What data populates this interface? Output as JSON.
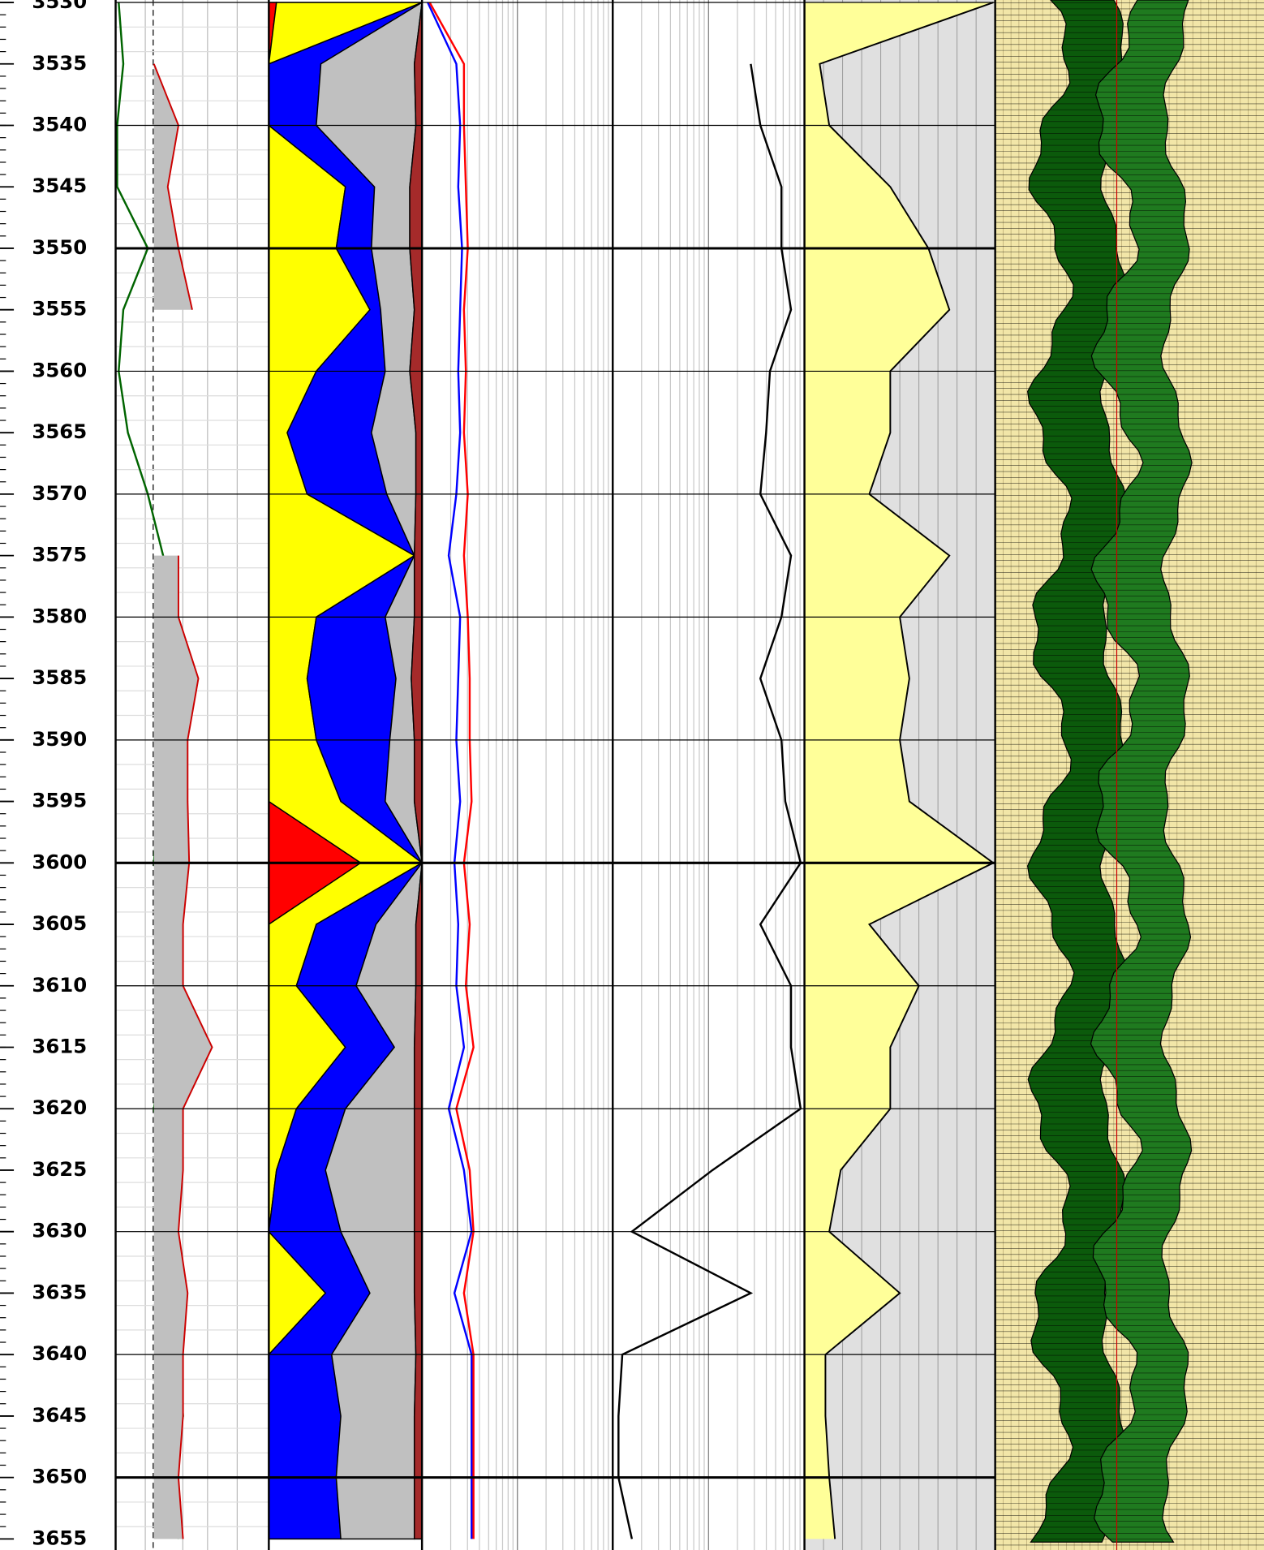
{
  "chart_data": {
    "type": "well-log",
    "depths": [
      3530,
      3535,
      3540,
      3545,
      3550,
      3555,
      3560,
      3565,
      3570,
      3575,
      3580,
      3585,
      3590,
      3595,
      3600,
      3605,
      3610,
      3615,
      3620,
      3625,
      3630,
      3635,
      3640,
      3645,
      3650,
      3655
    ],
    "ylim": [
      3529.8,
      3655.9
    ],
    "yticks": [
      3530,
      3535,
      3540,
      3545,
      3550,
      3555,
      3560,
      3565,
      3570,
      3575,
      3580,
      3585,
      3590,
      3595,
      3600,
      3605,
      3610,
      3615,
      3620,
      3625,
      3630,
      3635,
      3640,
      3645,
      3650,
      3655
    ],
    "tracks": [
      {
        "type": "line",
        "xlim": [
          0,
          100
        ],
        "background": "#ffffff",
        "series": [
          {
            "color": "#006400",
            "values": [
              2,
              5,
              1,
              1,
              21,
              5,
              2,
              8,
              21,
              31,
              37,
              28,
              34,
              28,
              25,
              37,
              34,
              31,
              25,
              34,
              37,
              28,
              41,
              44,
              37,
              41
            ]
          },
          {
            "color": "#cc0000",
            "fill": "#c0c0c0",
            "fill_from": 25,
            "values": [
              null,
              25,
              41,
              34,
              41,
              50,
              null,
              44,
              null,
              41,
              41,
              54,
              47,
              47,
              48,
              44,
              44,
              63,
              44,
              44,
              41,
              47,
              44,
              44,
              41,
              44
            ]
          }
        ]
      },
      {
        "type": "stack",
        "xlim": [
          0,
          100
        ],
        "background": "#ffffff",
        "series": [
          {
            "color": "#ff0000",
            "values": [
              5,
              0,
              0,
              0,
              0,
              0,
              0,
              0,
              0,
              0,
              0,
              0,
              0,
              0,
              60,
              0,
              0,
              0,
              0,
              0,
              0,
              0,
              0,
              0,
              0,
              0
            ]
          },
          {
            "color": "#ffff00",
            "values": [
              95,
              0,
              0,
              50,
              44,
              66,
              31,
              12,
              25,
              95,
              31,
              25,
              31,
              47,
              40,
              31,
              18,
              50,
              18,
              5,
              0,
              37,
              0,
              0,
              0,
              0
            ]
          },
          {
            "color": "#0000ff",
            "values": [
              0,
              34,
              31,
              19,
              23,
              7,
              45,
              55,
              52,
              0,
              45,
              58,
              48,
              29,
              0,
              39,
              39,
              32,
              32,
              32,
              47,
              29,
              41,
              47,
              44,
              47
            ]
          },
          {
            "color": "#c0c0c0",
            "values": [
              0,
              61,
              65,
              23,
              25,
              22,
              16,
              29,
              19,
              0,
              19,
              10,
              16,
              19,
              0,
              26,
              39,
              13,
              45,
              58,
              48,
              29,
              55,
              48,
              51,
              48
            ]
          },
          {
            "color": "#a52a2a",
            "values": [
              0,
              5,
              4,
              8,
              8,
              5,
              8,
              4,
              4,
              5,
              5,
              7,
              5,
              5,
              0,
              4,
              4,
              5,
              5,
              5,
              5,
              5,
              4,
              5,
              5,
              5
            ]
          }
        ]
      },
      {
        "type": "line",
        "xlim": [
          0,
          100
        ],
        "background": "#ffffff",
        "log_grid": 2,
        "series": [
          {
            "color": "#0000ff",
            "values": [
              3,
              18,
              20,
              19,
              21,
              20,
              19,
              20,
              18,
              14,
              20,
              19,
              18,
              20,
              17,
              19,
              18,
              22,
              14,
              22,
              26,
              17,
              26,
              26,
              26,
              26
            ]
          },
          {
            "color": "#ff0000",
            "values": [
              4,
              22,
              22,
              23,
              24,
              22,
              23,
              22,
              24,
              22,
              24,
              25,
              25,
              26,
              22,
              25,
              23,
              27,
              18,
              25,
              27,
              22,
              27,
              27,
              27,
              27
            ]
          }
        ]
      },
      {
        "type": "line",
        "xlim": [
          0,
          100
        ],
        "background": "#ffffff",
        "log_grid": 2,
        "series": [
          {
            "color": "#000000",
            "values": [
              null,
              72,
              77,
              88,
              88,
              93,
              82,
              80,
              77,
              93,
              88,
              77,
              88,
              90,
              98,
              77,
              93,
              93,
              98,
              52,
              10,
              72,
              5,
              3,
              3,
              10
            ]
          }
        ]
      },
      {
        "type": "line",
        "xlim": [
          0,
          100
        ],
        "background": "#e0e0e0",
        "series": [
          {
            "color": "#000000",
            "fill": "#ffff99",
            "fill_from": 0,
            "values": [
              99,
              8,
              13,
              45,
              65,
              76,
              45,
              45,
              34,
              76,
              50,
              55,
              50,
              55,
              99,
              34,
              60,
              45,
              45,
              19,
              13,
              50,
              11,
              11,
              13,
              16
            ]
          }
        ]
      }
    ]
  }
}
